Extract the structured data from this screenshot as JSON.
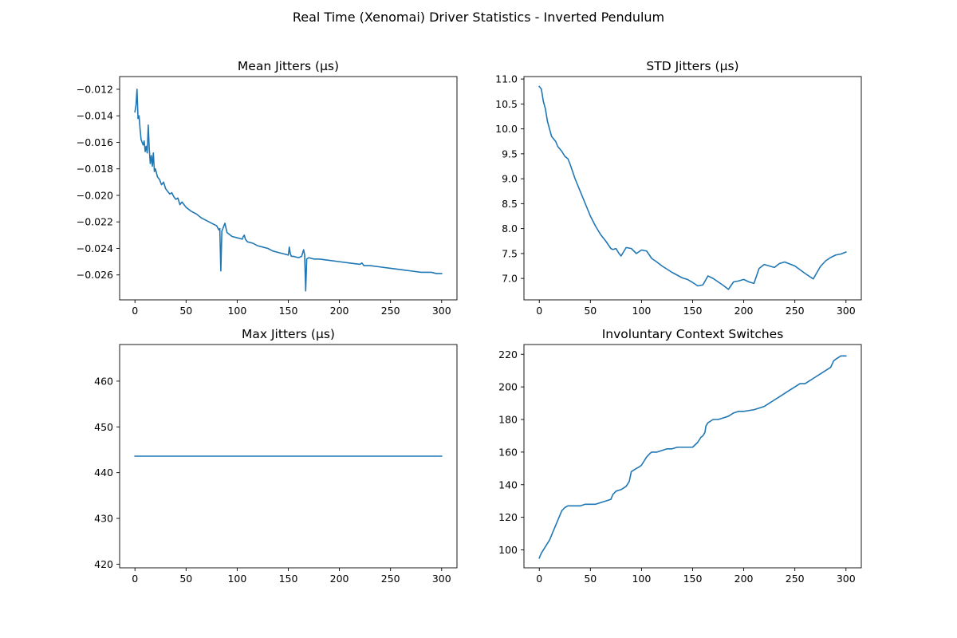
{
  "figure": {
    "suptitle": "Real Time (Xenomai) Driver Statistics - Inverted Pendulum",
    "line_color": "#1f77b4"
  },
  "chart_data": [
    {
      "type": "line",
      "title": "Mean Jitters (µs)",
      "xlabel": "",
      "ylabel": "",
      "xlim": [
        -15,
        315
      ],
      "ylim": [
        -0.02788,
        -0.01104
      ],
      "xticks": [
        0,
        50,
        100,
        150,
        200,
        250,
        300
      ],
      "xtick_labels": [
        "0",
        "50",
        "100",
        "150",
        "200",
        "250",
        "300"
      ],
      "yticks": [
        -0.026,
        -0.024,
        -0.022,
        -0.02,
        -0.018,
        -0.016,
        -0.014,
        -0.012
      ],
      "ytick_labels": [
        "−0.026",
        "−0.024",
        "−0.022",
        "−0.020",
        "−0.018",
        "−0.016",
        "−0.014",
        "−0.012"
      ],
      "grid": false,
      "series": [
        {
          "x": [
            0,
            1,
            2,
            3,
            4,
            5,
            6,
            7,
            8,
            9,
            10,
            11,
            12,
            13,
            14,
            15,
            16,
            17,
            18,
            19,
            20,
            22,
            24,
            26,
            28,
            30,
            32,
            34,
            36,
            38,
            40,
            42,
            44,
            46,
            48,
            50,
            55,
            60,
            65,
            70,
            75,
            80,
            82,
            83,
            84,
            85,
            86,
            88,
            90,
            95,
            100,
            105,
            106,
            107,
            108,
            110,
            115,
            120,
            125,
            130,
            135,
            140,
            145,
            150,
            151,
            152,
            153,
            155,
            160,
            163,
            165,
            166,
            167,
            168,
            170,
            175,
            180,
            190,
            200,
            210,
            220,
            222,
            224,
            230,
            240,
            250,
            260,
            270,
            280,
            290,
            295,
            300
          ],
          "y": [
            -0.0137,
            -0.0132,
            -0.012,
            -0.0142,
            -0.014,
            -0.015,
            -0.0158,
            -0.016,
            -0.0162,
            -0.0159,
            -0.0167,
            -0.0163,
            -0.0168,
            -0.0147,
            -0.0165,
            -0.0176,
            -0.017,
            -0.0178,
            -0.0168,
            -0.0182,
            -0.018,
            -0.0186,
            -0.0188,
            -0.0192,
            -0.019,
            -0.0195,
            -0.0197,
            -0.0199,
            -0.0198,
            -0.0201,
            -0.0203,
            -0.0202,
            -0.0207,
            -0.0205,
            -0.0207,
            -0.0209,
            -0.0212,
            -0.0214,
            -0.0217,
            -0.0219,
            -0.0221,
            -0.0223,
            -0.0226,
            -0.0225,
            -0.0257,
            -0.0227,
            -0.0225,
            -0.0221,
            -0.0228,
            -0.0231,
            -0.0232,
            -0.0233,
            -0.0231,
            -0.023,
            -0.0233,
            -0.0235,
            -0.0236,
            -0.0238,
            -0.0239,
            -0.024,
            -0.0242,
            -0.0243,
            -0.0244,
            -0.0245,
            -0.0239,
            -0.0244,
            -0.0246,
            -0.0246,
            -0.0247,
            -0.0246,
            -0.0241,
            -0.0245,
            -0.0272,
            -0.0248,
            -0.0247,
            -0.0248,
            -0.0248,
            -0.0249,
            -0.025,
            -0.0251,
            -0.0252,
            -0.0251,
            -0.0253,
            -0.0253,
            -0.0254,
            -0.0255,
            -0.0256,
            -0.0257,
            -0.0258,
            -0.0258,
            -0.0259,
            -0.0259
          ]
        }
      ]
    },
    {
      "type": "line",
      "title": "STD Jitters (µs)",
      "xlabel": "",
      "ylabel": "",
      "xlim": [
        -15,
        315
      ],
      "ylim": [
        6.57,
        11.05
      ],
      "xticks": [
        0,
        50,
        100,
        150,
        200,
        250,
        300
      ],
      "xtick_labels": [
        "0",
        "50",
        "100",
        "150",
        "200",
        "250",
        "300"
      ],
      "yticks": [
        7.0,
        7.5,
        8.0,
        8.5,
        9.0,
        9.5,
        10.0,
        10.5,
        11.0
      ],
      "ytick_labels": [
        "7.0",
        "7.5",
        "8.0",
        "8.5",
        "9.0",
        "9.5",
        "10.0",
        "10.5",
        "11.0"
      ],
      "grid": false,
      "series": [
        {
          "x": [
            0,
            2,
            4,
            6,
            8,
            10,
            12,
            14,
            16,
            18,
            20,
            22,
            25,
            28,
            30,
            35,
            40,
            45,
            50,
            55,
            60,
            65,
            70,
            72,
            75,
            78,
            80,
            85,
            90,
            95,
            100,
            105,
            110,
            115,
            120,
            130,
            140,
            145,
            150,
            155,
            160,
            165,
            170,
            175,
            180,
            185,
            190,
            195,
            200,
            205,
            210,
            215,
            220,
            225,
            230,
            235,
            240,
            250,
            260,
            268,
            275,
            280,
            285,
            290,
            295,
            300
          ],
          "y": [
            10.85,
            10.8,
            10.55,
            10.4,
            10.15,
            10.0,
            9.85,
            9.8,
            9.75,
            9.65,
            9.6,
            9.55,
            9.45,
            9.4,
            9.3,
            9.0,
            8.75,
            8.5,
            8.25,
            8.05,
            7.88,
            7.75,
            7.6,
            7.58,
            7.6,
            7.5,
            7.45,
            7.62,
            7.6,
            7.5,
            7.57,
            7.55,
            7.4,
            7.33,
            7.25,
            7.12,
            7.01,
            6.98,
            6.92,
            6.85,
            6.87,
            7.05,
            7.0,
            6.93,
            6.86,
            6.78,
            6.93,
            6.95,
            6.98,
            6.93,
            6.9,
            7.2,
            7.28,
            7.25,
            7.22,
            7.3,
            7.33,
            7.25,
            7.1,
            6.99,
            7.24,
            7.35,
            7.42,
            7.47,
            7.49,
            7.53
          ]
        }
      ]
    },
    {
      "type": "line",
      "title": "Max Jitters (µs)",
      "xlabel": "",
      "ylabel": "",
      "xlim": [
        -15,
        315
      ],
      "ylim": [
        419.2,
        468.0
      ],
      "xticks": [
        0,
        50,
        100,
        150,
        200,
        250,
        300
      ],
      "xtick_labels": [
        "0",
        "50",
        "100",
        "150",
        "200",
        "250",
        "300"
      ],
      "yticks": [
        420,
        430,
        440,
        450,
        460
      ],
      "ytick_labels": [
        "420",
        "430",
        "440",
        "450",
        "460"
      ],
      "grid": false,
      "series": [
        {
          "x": [
            0,
            300
          ],
          "y": [
            443.6,
            443.6
          ]
        }
      ]
    },
    {
      "type": "line",
      "title": "Involuntary Context Switches",
      "xlabel": "",
      "ylabel": "",
      "xlim": [
        -15,
        315
      ],
      "ylim": [
        89,
        226
      ],
      "xticks": [
        0,
        50,
        100,
        150,
        200,
        250,
        300
      ],
      "xtick_labels": [
        "0",
        "50",
        "100",
        "150",
        "200",
        "250",
        "300"
      ],
      "yticks": [
        100,
        120,
        140,
        160,
        180,
        200,
        220
      ],
      "ytick_labels": [
        "100",
        "120",
        "140",
        "160",
        "180",
        "200",
        "220"
      ],
      "grid": false,
      "series": [
        {
          "x": [
            0,
            2,
            4,
            6,
            8,
            10,
            12,
            14,
            16,
            18,
            20,
            22,
            25,
            28,
            30,
            35,
            40,
            45,
            50,
            55,
            60,
            65,
            70,
            72,
            75,
            80,
            85,
            88,
            90,
            95,
            98,
            100,
            105,
            108,
            110,
            115,
            120,
            125,
            130,
            135,
            140,
            150,
            155,
            158,
            160,
            162,
            163,
            165,
            170,
            175,
            180,
            185,
            190,
            195,
            200,
            210,
            215,
            220,
            225,
            230,
            235,
            240,
            245,
            250,
            255,
            260,
            265,
            270,
            275,
            280,
            285,
            288,
            290,
            295,
            300
          ],
          "y": [
            95,
            98,
            100,
            102,
            104,
            106,
            109,
            112,
            115,
            118,
            121,
            124,
            126,
            127,
            127,
            127,
            127,
            128,
            128,
            128,
            129,
            130,
            131,
            134,
            136,
            137,
            139,
            142,
            148,
            150,
            151,
            152,
            157,
            159,
            160,
            160,
            161,
            162,
            162,
            163,
            163,
            163,
            166,
            169,
            170,
            172,
            176,
            178,
            180,
            180,
            181,
            182,
            184,
            185,
            185,
            186,
            187,
            188,
            190,
            192,
            194,
            196,
            198,
            200,
            202,
            202,
            204,
            206,
            208,
            210,
            212,
            216,
            217,
            219,
            219
          ]
        }
      ]
    }
  ]
}
